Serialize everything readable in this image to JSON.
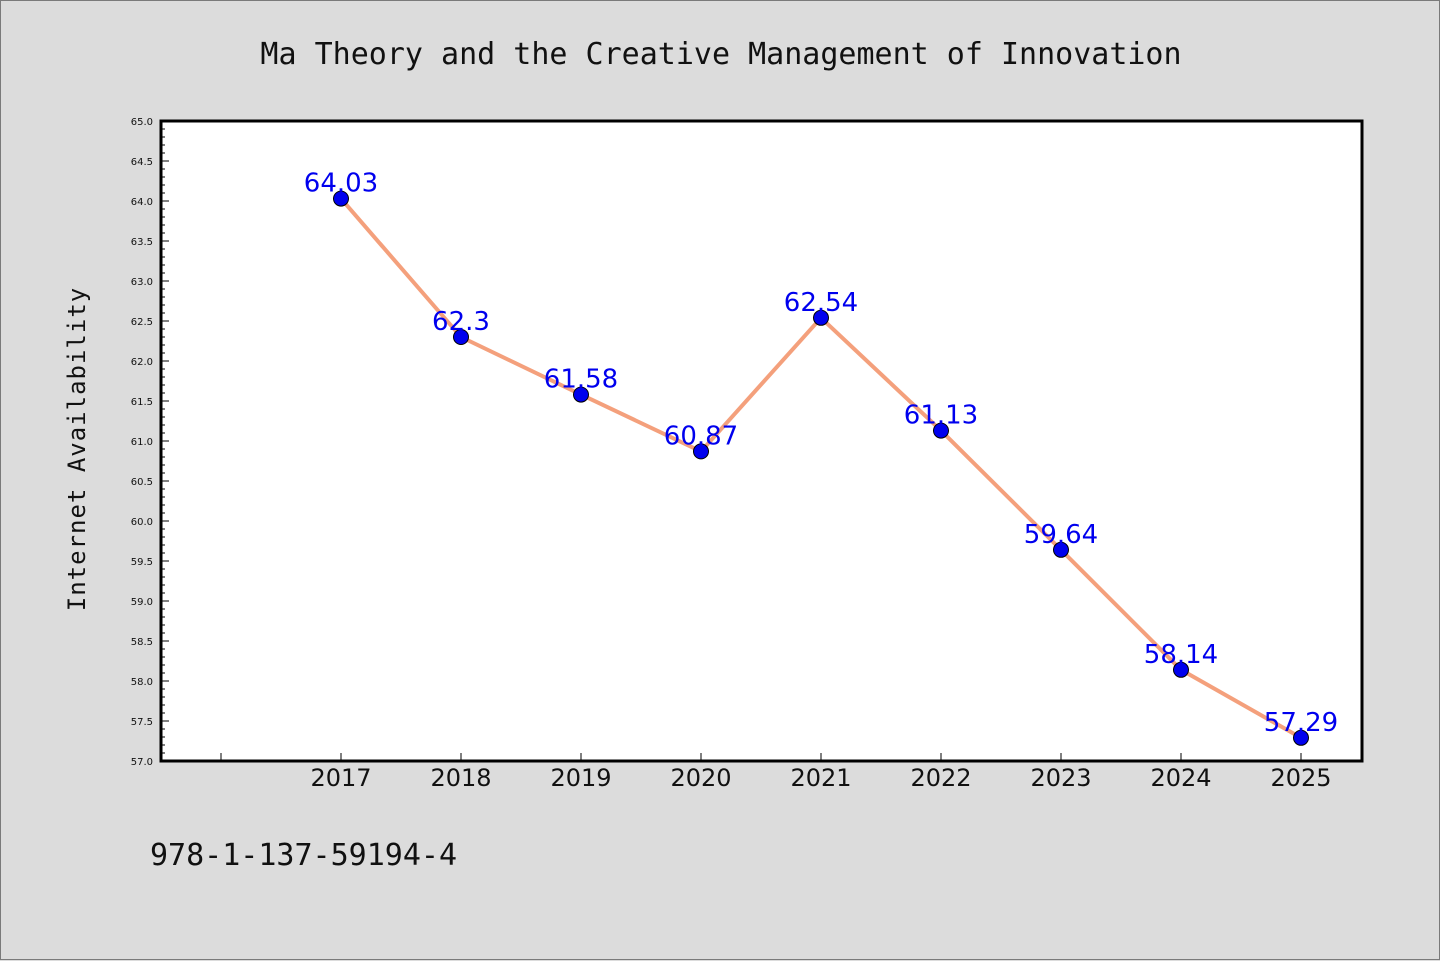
{
  "chart_data": {
    "type": "line",
    "title": "Ma Theory and the Creative Management of Innovation",
    "xlabel": "",
    "ylabel": "Internet Availability",
    "categories": [
      "2017",
      "2018",
      "2019",
      "2020",
      "2021",
      "2022",
      "2023",
      "2024",
      "2025"
    ],
    "values": [
      64.03,
      62.3,
      61.58,
      60.87,
      62.54,
      61.13,
      59.64,
      58.14,
      57.29
    ],
    "data_labels": [
      "64.03",
      "62.3",
      "61.58",
      "60.87",
      "62.54",
      "61.13",
      "59.64",
      "58.14",
      "57.29"
    ],
    "ylim": [
      57.0,
      65.0
    ],
    "yticks": [
      "57.0",
      "57.5",
      "58.0",
      "58.5",
      "59.0",
      "59.5",
      "60.0",
      "60.5",
      "61.0",
      "61.5",
      "62.0",
      "62.5",
      "63.0",
      "63.5",
      "64.0",
      "64.5",
      "65.0"
    ],
    "grid": false,
    "legend": "none",
    "line_color": "#f4a07c",
    "marker_color": "#0000ee",
    "label_color": "#0000ee"
  },
  "footer": {
    "isbn": "978-1-137-59194-4"
  }
}
